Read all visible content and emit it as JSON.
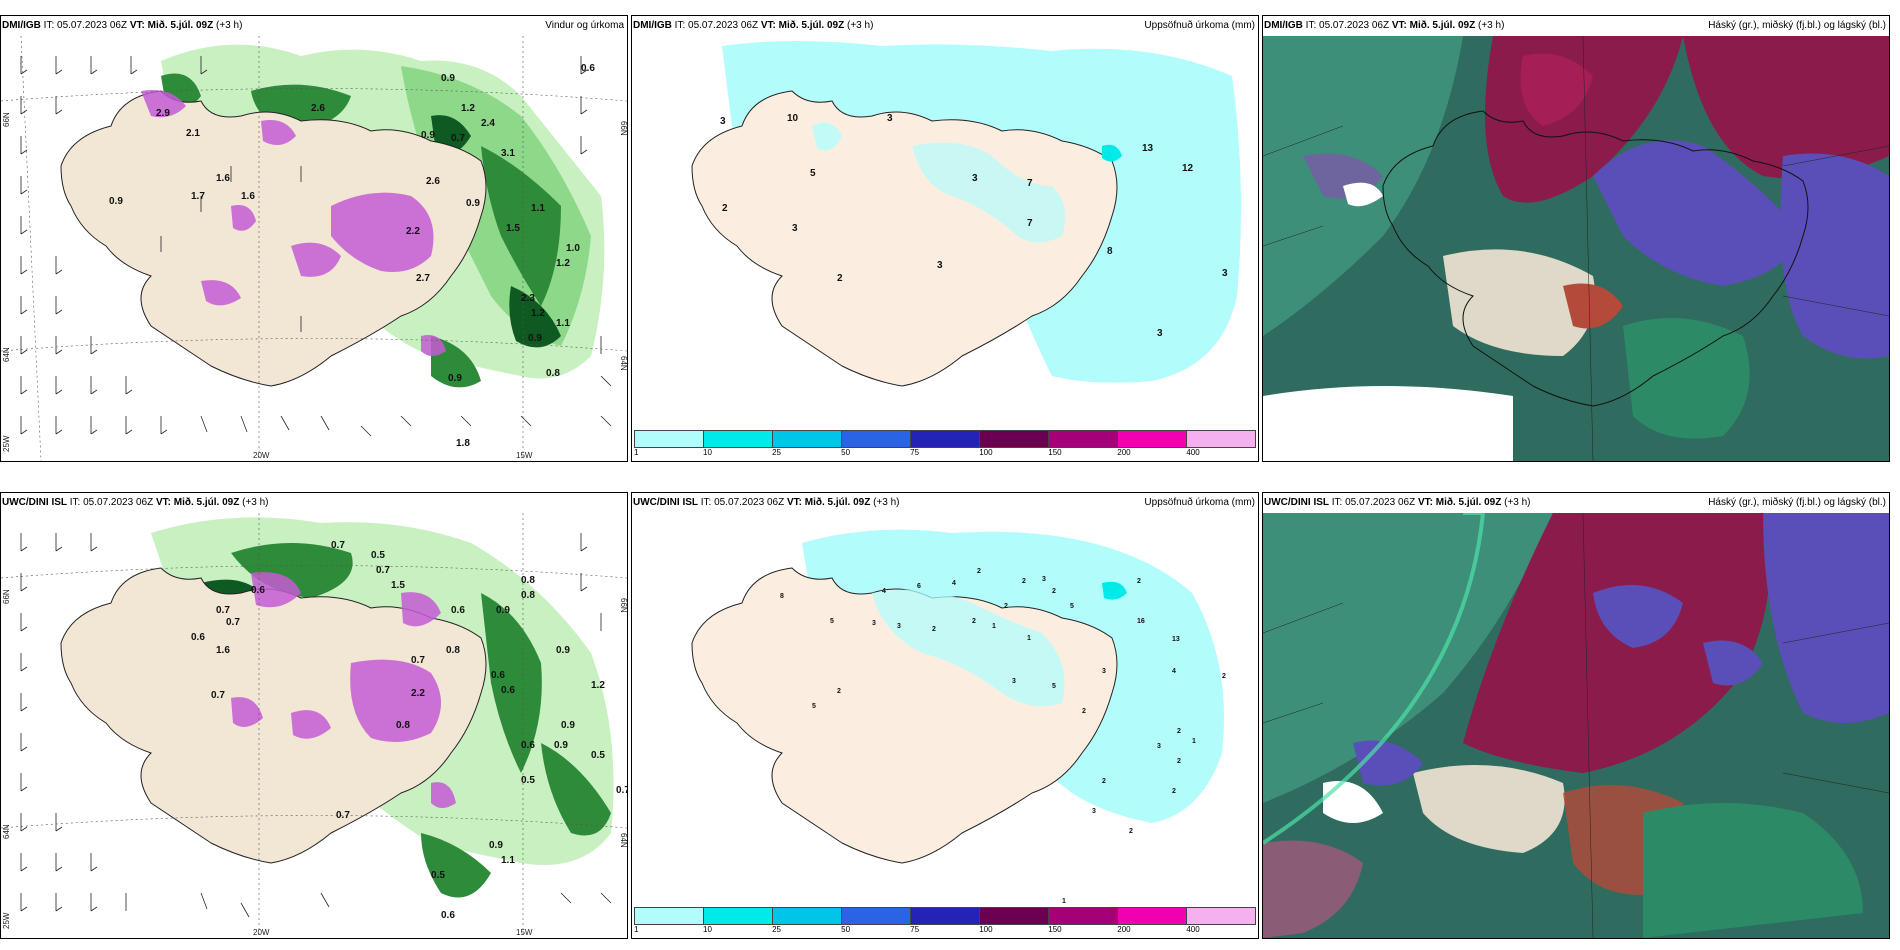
{
  "panels": [
    {
      "id": "dmi-wind",
      "model": "DMI/IGB",
      "it_label": "IT:",
      "it_value": "05.07.2023 06Z",
      "vt_label": "VT:",
      "vt_value": "Mið. 5.júl. 09Z",
      "lead": "(+3 h)",
      "title": "Vindur og úrkoma",
      "axis_labels": {
        "lat_66": "66N",
        "lat_64": "64N",
        "lon_25": "25W",
        "lon_20": "20W",
        "lon_15": "15W"
      },
      "values": [
        "0.9",
        "1.2",
        "0.6",
        "2.9",
        "2.1",
        "2.6",
        "2.4",
        "0.9",
        "0.7",
        "3.1",
        "1.6",
        "2.6",
        "1.7",
        "1.6",
        "0.9",
        "0.9",
        "2.2",
        "2.7",
        "1.1",
        "1.5",
        "1.0",
        "1.2",
        "2.3",
        "1.2",
        "1.1",
        "0.9",
        "0.8",
        "1.8",
        "0.9"
      ]
    },
    {
      "id": "dmi-precip",
      "model": "DMI/IGB",
      "it_label": "IT:",
      "it_value": "05.07.2023 06Z",
      "vt_label": "VT:",
      "vt_value": "Mið. 5.júl. 09Z",
      "lead": "(+3 h)",
      "title": "Uppsöfnuð úrkoma (mm)",
      "values": [
        "3",
        "10",
        "5",
        "3",
        "2",
        "3",
        "2",
        "3",
        "7",
        "7",
        "13",
        "12",
        "8",
        "3",
        "3",
        "3",
        "2"
      ]
    },
    {
      "id": "dmi-cloud",
      "model": "DMI/IGB",
      "it_label": "IT:",
      "it_value": "05.07.2023 06Z",
      "vt_label": "VT:",
      "vt_value": "Mið. 5.júl. 09Z",
      "lead": "(+3 h)",
      "title": "Háský (gr.), miðský (fj.bl.) og lágský (bl.)"
    },
    {
      "id": "uwc-wind",
      "model": "UWC/DINI ISL",
      "it_label": "IT:",
      "it_value": "05.07.2023 06Z",
      "vt_label": "VT:",
      "vt_value": "Mið. 5.júl. 09Z",
      "lead": "(+3 h)",
      "title": "",
      "axis_labels": {
        "lat_66": "66N",
        "lat_64": "64N",
        "lon_25": "25W",
        "lon_20": "20W",
        "lon_15": "15W"
      },
      "values": [
        "0.7",
        "0.5",
        "0.7",
        "0.8",
        "1.5",
        "0.6",
        "0.8",
        "0.9",
        "0.7",
        "0.7",
        "0.6",
        "1.6",
        "0.6",
        "0.8",
        "0.7",
        "0.9",
        "0.7",
        "2.2",
        "0.8",
        "0.6",
        "0.6",
        "1.2",
        "0.9",
        "0.5",
        "0.6",
        "0.9",
        "0.5",
        "0.7",
        "0.7",
        "0.9",
        "1.1",
        "0.6",
        "0.5"
      ]
    },
    {
      "id": "uwc-precip",
      "model": "UWC/DINI ISL",
      "it_label": "IT:",
      "it_value": "05.07.2023 06Z",
      "vt_label": "VT:",
      "vt_value": "Mið. 5.júl. 09Z",
      "lead": "(+3 h)",
      "title": "Uppsöfnuð úrkoma (mm)",
      "values": [
        "8",
        "4",
        "6",
        "4",
        "2",
        "2",
        "3",
        "2",
        "5",
        "3",
        "3",
        "2",
        "2",
        "1",
        "2",
        "1",
        "5",
        "2",
        "16",
        "13",
        "4",
        "2",
        "3",
        "5",
        "3",
        "2",
        "5",
        "2",
        "2",
        "3",
        "2",
        "1",
        "2",
        "2",
        "3",
        "2",
        "1"
      ]
    },
    {
      "id": "uwc-cloud",
      "model": "UWC/DINI ISL",
      "it_label": "IT:",
      "it_value": "05.07.2023 06Z",
      "vt_label": "VT:",
      "vt_value": "Mið. 5.júl. 09Z",
      "lead": "(+3 h)",
      "title": "Háský (gr.), miðský (fj.bl.) og lágský (bl.)"
    }
  ],
  "colorbar": {
    "ticks": [
      "1",
      "10",
      "25",
      "50",
      "75",
      "100",
      "150",
      "200",
      "400"
    ],
    "colors": [
      "#b3fcfc",
      "#00eaea",
      "#00c4e8",
      "#2a63e6",
      "#2323b8",
      "#6b0050",
      "#a50078",
      "#f000b0",
      "#f5b0f0"
    ]
  }
}
